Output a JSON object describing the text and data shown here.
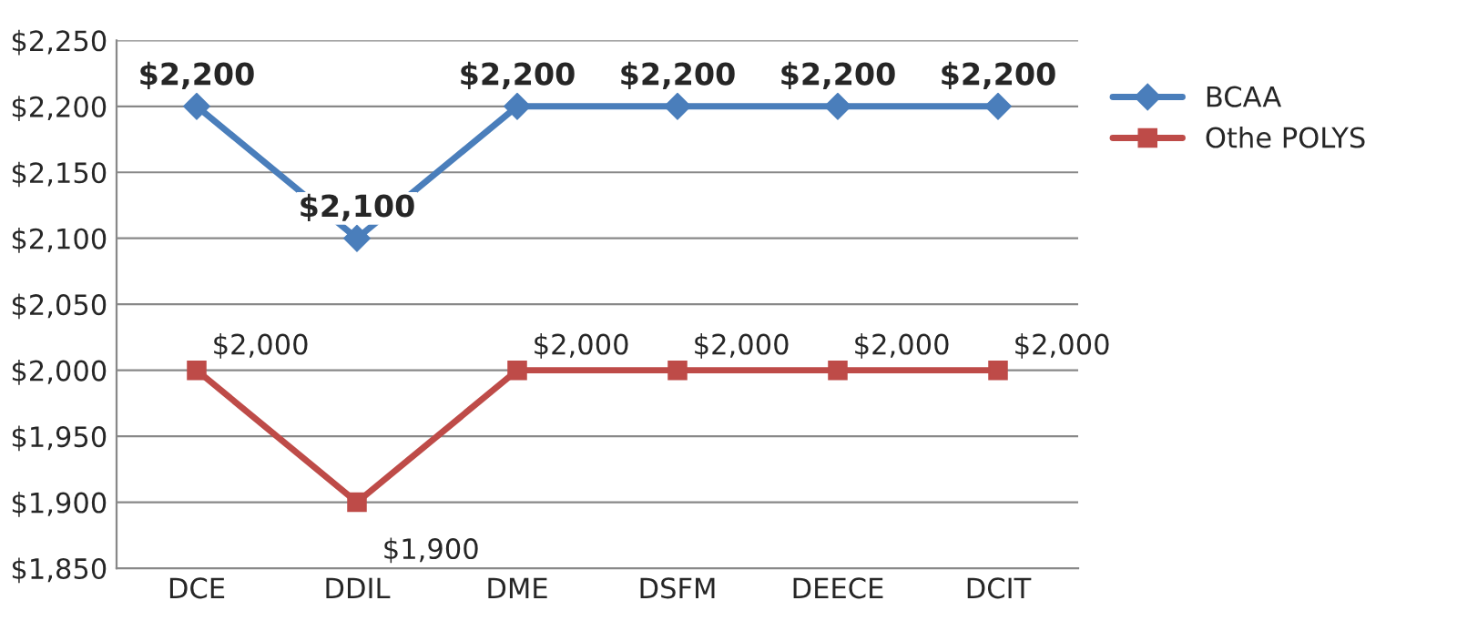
{
  "chart_data": {
    "type": "line",
    "categories": [
      "DCE",
      "DDIL",
      "DME",
      "DSFM",
      "DEECE",
      "DCIT"
    ],
    "series": [
      {
        "name": "BCAA",
        "color": "#4a7ebb",
        "marker": "diamond",
        "values": [
          2200,
          2100,
          2200,
          2200,
          2200,
          2200
        ],
        "value_labels": [
          "$2,200",
          "$2,100",
          "$2,200",
          "$2,200",
          "$2,200",
          "$2,200"
        ]
      },
      {
        "name": "Othe POLYS",
        "color": "#be4b48",
        "marker": "square",
        "values": [
          2000,
          1900,
          2000,
          2000,
          2000,
          2000
        ],
        "value_labels": [
          "$2,000",
          "$1,900",
          "$2,000",
          "$2,000",
          "$2,000",
          "$2,000"
        ]
      }
    ],
    "ylim": [
      1850,
      2250
    ],
    "yticks": [
      {
        "value": 1850,
        "label": "$1,850"
      },
      {
        "value": 1900,
        "label": "$1,900"
      },
      {
        "value": 1950,
        "label": "$1,950"
      },
      {
        "value": 2000,
        "label": "$2,000"
      },
      {
        "value": 2050,
        "label": "$2,050"
      },
      {
        "value": 2100,
        "label": "$2,100"
      },
      {
        "value": 2150,
        "label": "$2,150"
      },
      {
        "value": 2200,
        "label": "$2,200"
      },
      {
        "value": 2250,
        "label": "$2,250"
      }
    ],
    "grid": "y",
    "legend": "right",
    "line_style": "solid"
  }
}
